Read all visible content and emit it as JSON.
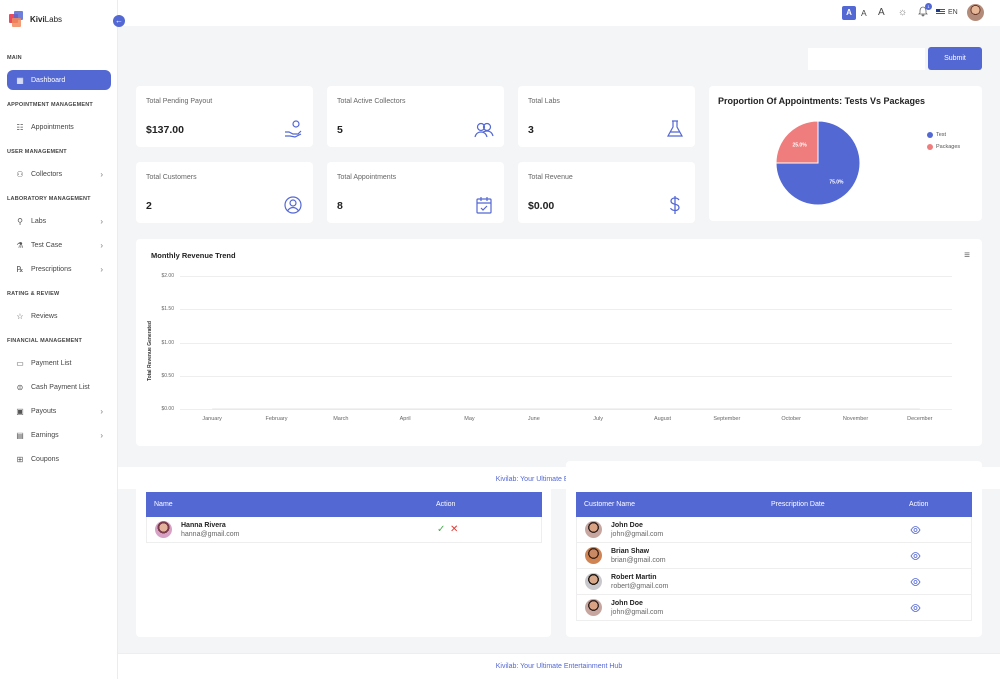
{
  "app": {
    "brand_bold": "Kivi",
    "brand_rest": "Labs"
  },
  "sidebar": {
    "sections": [
      "MAIN",
      "APPOINTMENT MANAGEMENT",
      "USER MANAGEMENT",
      "LABORATORY MANAGEMENT",
      "RATING & REVIEW",
      "FINANCIAL MANAGEMENT"
    ],
    "items": [
      {
        "label": "Dashboard",
        "icon": "grid-icon",
        "active": true
      },
      {
        "label": "Appointments",
        "icon": "list-icon"
      },
      {
        "label": "Collectors",
        "icon": "collector-icon",
        "chevron": true
      },
      {
        "label": "Labs",
        "icon": "link-icon",
        "chevron": true
      },
      {
        "label": "Test Case",
        "icon": "flask-icon",
        "chevron": true
      },
      {
        "label": "Prescriptions",
        "icon": "prescription-icon",
        "chevron": true
      },
      {
        "label": "Reviews",
        "icon": "star-icon"
      },
      {
        "label": "Payment List",
        "icon": "card-icon"
      },
      {
        "label": "Cash Payment List",
        "icon": "cash-icon"
      },
      {
        "label": "Payouts",
        "icon": "payout-icon",
        "chevron": true
      },
      {
        "label": "Earnings",
        "icon": "wallet-icon",
        "chevron": true
      },
      {
        "label": "Coupons",
        "icon": "gift-icon"
      }
    ]
  },
  "topbar": {
    "font_sizes": [
      "A",
      "A",
      "A"
    ],
    "notification_count": "1",
    "language": "EN"
  },
  "filter": {
    "date_value": "",
    "submit_label": "Submit"
  },
  "stats": [
    {
      "label": "Total Pending Payout",
      "value": "$137.00",
      "icon": "hand-coin-icon"
    },
    {
      "label": "Total Active Collectors",
      "value": "5",
      "icon": "users-icon"
    },
    {
      "label": "Total Labs",
      "value": "3",
      "icon": "flask-icon"
    },
    {
      "label": "Total Customers",
      "value": "2",
      "icon": "user-circle-icon"
    },
    {
      "label": "Total Appointments",
      "value": "8",
      "icon": "calendar-check-icon"
    },
    {
      "label": "Total Revenue",
      "value": "$0.00",
      "icon": "dollar-icon"
    }
  ],
  "pie": {
    "title": "Proportion Of Appointments: Tests Vs Packages",
    "chart_data": {
      "type": "pie",
      "labels": [
        "Test",
        "Packages"
      ],
      "values": [
        75.0,
        25.0
      ],
      "slice_labels": [
        "75.0%",
        "25.0%"
      ],
      "colors": [
        "#5468d4",
        "#f07d7d"
      ],
      "legend": "right"
    }
  },
  "revenue": {
    "chart_data": {
      "type": "line",
      "title": "Monthly Revenue Trend",
      "ylabel": "Total Revenue Generated",
      "xlabel": "",
      "categories": [
        "January",
        "February",
        "March",
        "April",
        "May",
        "June",
        "July",
        "August",
        "September",
        "October",
        "November",
        "December"
      ],
      "y_ticks": [
        "$0.00",
        "$0.50",
        "$1.00",
        "$1.50",
        "$2.00"
      ],
      "ylim": [
        0,
        2
      ],
      "series": [
        {
          "values": [
            0,
            0,
            0,
            0,
            0,
            0,
            0,
            0,
            0,
            0,
            0,
            0
          ]
        }
      ],
      "grid": true
    }
  },
  "footer_text": "Kivilab: Your Ultimate Entertainment Hub",
  "collectors_table": {
    "columns": [
      "Name",
      "Action"
    ],
    "rows": [
      {
        "name": "Hanna Rivera",
        "email": "hanna@gmail.com"
      }
    ]
  },
  "prescriptions_table": {
    "columns": [
      "Customer Name",
      "Prescription Date",
      "Action"
    ],
    "rows": [
      {
        "name": "John Doe",
        "email": "john@gmail.com",
        "date": ""
      },
      {
        "name": "Brian Shaw",
        "email": "brian@gmail.com",
        "date": ""
      },
      {
        "name": "Robert Martin",
        "email": "robert@gmail.com",
        "date": ""
      },
      {
        "name": "John Doe",
        "email": "john@gmail.com",
        "date": ""
      }
    ]
  },
  "colors": {
    "primary": "#5468d4",
    "secondary": "#f07d7d",
    "approve": "#4caf50",
    "reject": "#e53935"
  }
}
